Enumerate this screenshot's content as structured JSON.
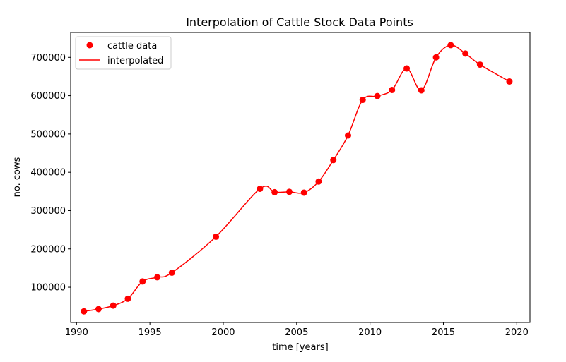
{
  "chart_data": {
    "type": "line",
    "title": "Interpolation of Cattle Stock Data Points",
    "xlabel": "time [years]",
    "ylabel": "no. cows",
    "xlim": [
      1989.6,
      2020.9
    ],
    "ylim": [
      8000,
      765000
    ],
    "xticks": [
      1990,
      1995,
      2000,
      2005,
      2010,
      2015,
      2020
    ],
    "yticks": [
      100000,
      200000,
      300000,
      400000,
      500000,
      600000,
      700000
    ],
    "grid": false,
    "legend_position": "upper-left",
    "series": [
      {
        "name": "cattle data",
        "kind": "markers",
        "color": "#ff0000",
        "x": [
          1990.5,
          1991.5,
          1992.5,
          1993.5,
          1994.5,
          1995.5,
          1996.5,
          1999.5,
          2002.5,
          2003.5,
          2004.5,
          2005.5,
          2006.5,
          2007.5,
          2008.5,
          2009.5,
          2010.5,
          2011.5,
          2012.5,
          2013.5,
          2014.5,
          2015.5,
          2016.5,
          2017.5,
          2019.5
        ],
        "y": [
          37000,
          43000,
          52000,
          70000,
          115000,
          126000,
          138000,
          232000,
          357000,
          348000,
          349000,
          347000,
          376000,
          432000,
          496000,
          589000,
          599000,
          615000,
          671000,
          614000,
          700000,
          732000,
          710000,
          681000,
          637000
        ]
      },
      {
        "name": "interpolated",
        "kind": "line",
        "color": "#ff0000"
      }
    ]
  }
}
